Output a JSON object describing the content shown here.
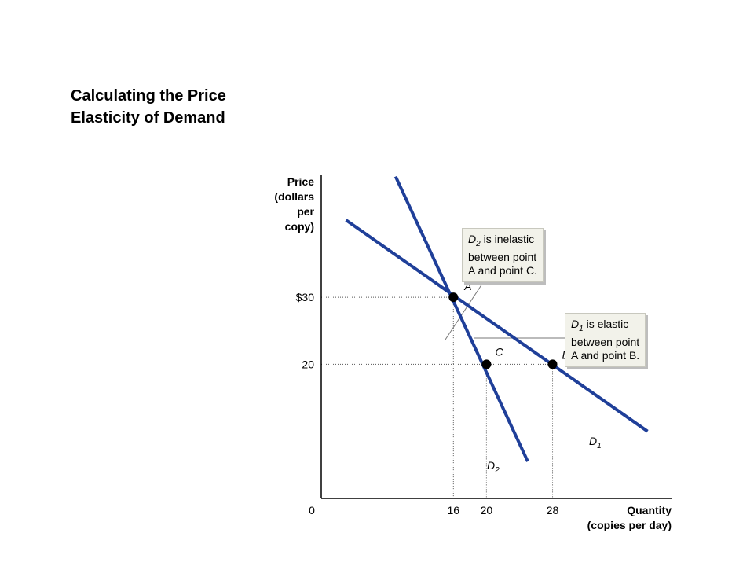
{
  "title_lines": [
    "Calculating the Price",
    "Elasticity of Demand"
  ],
  "colors": {
    "curve": "#1f3f99",
    "axis": "#000000",
    "guide": "#555555",
    "callout_bg": "#f2f2ea"
  },
  "chart_data": {
    "type": "line",
    "ylabel_lines": [
      "Price",
      "(dollars",
      "per",
      "copy)"
    ],
    "xlabel_lines": [
      "Quantity",
      "(copies per day)"
    ],
    "origin_label": "0",
    "xlim": [
      0,
      42.4
    ],
    "ylim": [
      0,
      48.3
    ],
    "x_ticks": [
      {
        "value": 16,
        "label": "16"
      },
      {
        "value": 20,
        "label": "20"
      },
      {
        "value": 28,
        "label": "28"
      }
    ],
    "y_ticks": [
      {
        "value": 30,
        "label": "$30"
      },
      {
        "value": 20,
        "label": "20"
      }
    ],
    "series": [
      {
        "name": "D1",
        "name_main": "D",
        "name_sub": "1",
        "points": [
          [
            3,
            41.5
          ],
          [
            39.5,
            10
          ]
        ]
      },
      {
        "name": "D2",
        "name_main": "D",
        "name_sub": "2",
        "points": [
          [
            9,
            48
          ],
          [
            25,
            5.5
          ]
        ]
      }
    ],
    "points": [
      {
        "label": "A",
        "x": 16,
        "y": 30
      },
      {
        "label": "C",
        "x": 20,
        "y": 20
      },
      {
        "label": "B",
        "x": 28,
        "y": 20
      }
    ],
    "annotations": [
      {
        "subject_main": "D",
        "subject_sub": "2",
        "lines": [
          " is inelastic",
          "between point",
          "A and point C."
        ]
      },
      {
        "subject_main": "D",
        "subject_sub": "1",
        "lines": [
          " is elastic",
          "between point",
          "A and point B."
        ]
      }
    ]
  }
}
